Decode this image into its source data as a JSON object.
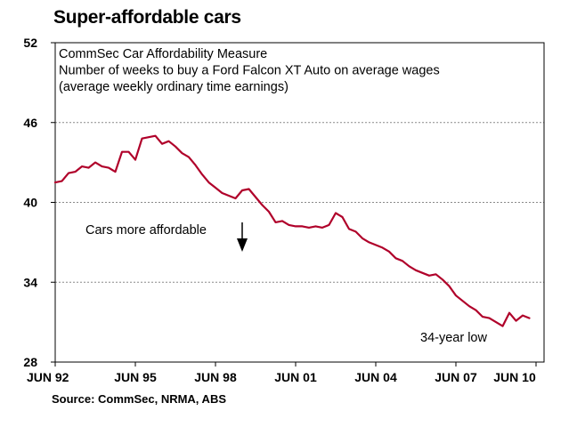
{
  "title": "Super-affordable cars",
  "source": "Source: CommSec, NRMA, ABS",
  "chart_data": {
    "type": "line",
    "title": "",
    "subtitle_lines": [
      "CommSec Car Affordability Measure",
      "Number of weeks to buy a Ford Falcon XT Auto on average wages",
      "(average weekly ordinary time earnings)"
    ],
    "xlabel": "",
    "ylabel": "",
    "ylim": [
      28,
      52
    ],
    "yticks": [
      28,
      34,
      40,
      46,
      52
    ],
    "x_tick_labels": [
      "JUN 92",
      "JUN 95",
      "JUN 98",
      "JUN 01",
      "JUN 04",
      "JUN 07",
      "JUN 10"
    ],
    "xlim": [
      1992.5,
      2010.8
    ],
    "grid": true,
    "legend": "none",
    "line_color": "#b0002a",
    "annotations": [
      {
        "text": "Cars more affordable",
        "kind": "arrow-down",
        "x": 1999.2,
        "y": 38.5
      },
      {
        "text": "34-year low",
        "x": 2008.75,
        "y": 30.6
      }
    ],
    "series": [
      {
        "x": [
          1992.5,
          1992.75,
          1993.0,
          1993.25,
          1993.5,
          1993.75,
          1994.0,
          1994.25,
          1994.5,
          1994.75,
          1995.0,
          1995.25,
          1995.5,
          1995.75,
          1996.0,
          1996.25,
          1996.5,
          1996.75,
          1997.0,
          1997.25,
          1997.5,
          1997.75,
          1998.0,
          1998.25,
          1998.5,
          1998.75,
          1999.0,
          1999.25,
          1999.5,
          1999.75,
          2000.0,
          2000.25,
          2000.5,
          2000.75,
          2001.0,
          2001.25,
          2001.5,
          2001.75,
          2002.0,
          2002.25,
          2002.5,
          2002.75,
          2003.0,
          2003.25,
          2003.5,
          2003.75,
          2004.0,
          2004.25,
          2004.5,
          2004.75,
          2005.0,
          2005.25,
          2005.5,
          2005.75,
          2006.0,
          2006.25,
          2006.5,
          2006.75,
          2007.0,
          2007.25,
          2007.5,
          2007.75,
          2008.0,
          2008.25,
          2008.5,
          2008.75,
          2009.0,
          2009.25,
          2009.5,
          2009.75,
          2010.0,
          2010.25
        ],
        "values": [
          41.5,
          41.6,
          42.2,
          42.3,
          42.7,
          42.6,
          43.0,
          42.7,
          42.6,
          42.3,
          43.8,
          43.8,
          43.2,
          44.8,
          44.9,
          45.0,
          44.4,
          44.6,
          44.2,
          43.7,
          43.4,
          42.8,
          42.1,
          41.5,
          41.1,
          40.7,
          40.5,
          40.3,
          40.9,
          41.0,
          40.4,
          39.8,
          39.3,
          38.5,
          38.6,
          38.3,
          38.2,
          38.2,
          38.1,
          38.2,
          38.1,
          38.3,
          39.2,
          38.9,
          38.0,
          37.8,
          37.3,
          37.0,
          36.8,
          36.6,
          36.3,
          35.8,
          35.6,
          35.2,
          34.9,
          34.7,
          34.5,
          34.6,
          34.2,
          33.7,
          33.0,
          32.6,
          32.2,
          31.9,
          31.4,
          31.3,
          31.0,
          30.7,
          31.7,
          31.1,
          31.5,
          31.3
        ]
      }
    ]
  }
}
